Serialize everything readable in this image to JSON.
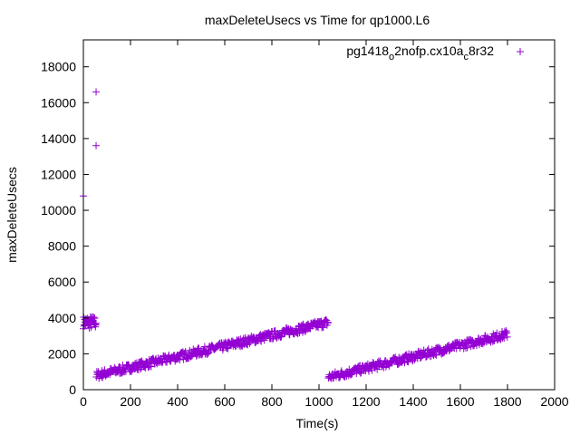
{
  "chart_data": {
    "type": "scatter",
    "title": "maxDeleteUsecs vs Time for qp1000.L6",
    "xlabel": "Time(s)",
    "ylabel": "maxDeleteUsecs",
    "xlim": [
      0,
      2000
    ],
    "ylim": [
      0,
      19500
    ],
    "x_ticks": [
      0,
      200,
      400,
      600,
      800,
      1000,
      1200,
      1400,
      1600,
      1800,
      2000
    ],
    "y_ticks": [
      0,
      2000,
      4000,
      6000,
      8000,
      10000,
      12000,
      14000,
      16000,
      18000
    ],
    "grid": false,
    "legend_position": "top-right",
    "marker": "plus",
    "series": [
      {
        "name": "pg1418_o2nofp.cx10a_c8r32",
        "name_parts": [
          "pg1418",
          "o",
          "2nofp.cx10a",
          "c",
          "8r32"
        ],
        "color": "#9400d3",
        "outliers": [
          [
            0,
            10800
          ],
          [
            54,
            16600
          ],
          [
            54,
            13600
          ]
        ],
        "segments": [
          {
            "x_range": [
              0,
              55
            ],
            "y_range": [
              3400,
              4100
            ]
          },
          {
            "x_range": [
              55,
              1040
            ],
            "y_start": 800,
            "y_end": 3750,
            "spread": 450
          },
          {
            "x_range": [
              1040,
              1800
            ],
            "y_start": 700,
            "y_end": 3100,
            "spread": 450
          }
        ]
      }
    ]
  }
}
